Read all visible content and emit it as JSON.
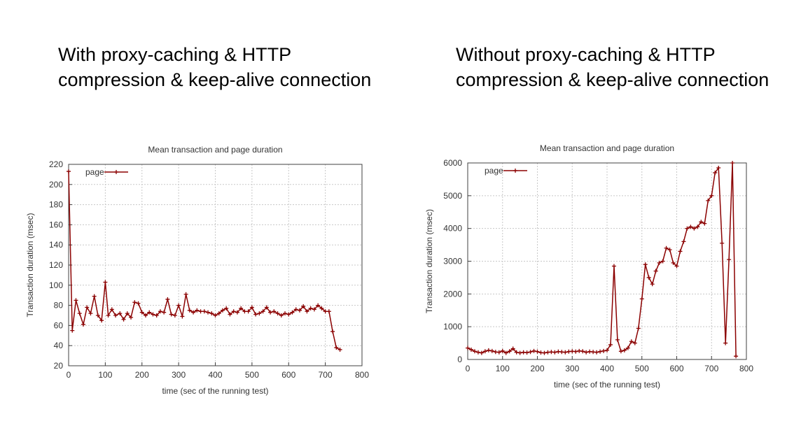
{
  "headings": {
    "left": [
      "With proxy-caching & HTTP",
      "compression & keep-alive connection"
    ],
    "right": [
      "Without proxy-caching & HTTP",
      "compression & keep-alive connection"
    ]
  },
  "colors": {
    "series": "#8b0000",
    "grid": "#c8c8c8",
    "axis": "#404040"
  },
  "chart_data": [
    {
      "type": "line",
      "title": "Mean transaction and page duration",
      "xlabel": "time (sec of the running test)",
      "ylabel": "Transaction duration (msec)",
      "xlim": [
        0,
        800
      ],
      "ylim": [
        20,
        220
      ],
      "xticks": [
        0,
        100,
        200,
        300,
        400,
        500,
        600,
        700,
        800
      ],
      "yticks": [
        20,
        40,
        60,
        80,
        100,
        120,
        140,
        160,
        180,
        200,
        220
      ],
      "grid": true,
      "legend_position": "top-left",
      "series": [
        {
          "name": "page",
          "marker": "plus",
          "x": [
            0,
            10,
            20,
            30,
            40,
            50,
            60,
            70,
            80,
            90,
            100,
            108,
            118,
            128,
            140,
            150,
            160,
            170,
            180,
            190,
            200,
            210,
            220,
            230,
            240,
            250,
            260,
            270,
            280,
            290,
            300,
            310,
            320,
            330,
            340,
            350,
            360,
            370,
            380,
            390,
            400,
            410,
            420,
            430,
            440,
            450,
            460,
            470,
            480,
            490,
            500,
            510,
            520,
            530,
            540,
            550,
            560,
            570,
            580,
            590,
            600,
            610,
            620,
            630,
            640,
            650,
            660,
            670,
            680,
            690,
            700,
            710,
            720,
            730,
            740
          ],
          "y": [
            213,
            55,
            85,
            72,
            61,
            78,
            72,
            89,
            70,
            65,
            103,
            70,
            76,
            70,
            72,
            66,
            72,
            68,
            83,
            82,
            73,
            70,
            73,
            71,
            70,
            74,
            73,
            86,
            71,
            70,
            80,
            69,
            91,
            75,
            73,
            75,
            74,
            74,
            73,
            72,
            70,
            72,
            75,
            77,
            71,
            74,
            73,
            77,
            74,
            74,
            78,
            71,
            72,
            74,
            78,
            73,
            74,
            72,
            70,
            72,
            71,
            73,
            76,
            75,
            79,
            74,
            77,
            76,
            80,
            77,
            74,
            74,
            54,
            38,
            36
          ]
        }
      ]
    },
    {
      "type": "line",
      "title": "Mean transaction and page duration",
      "xlabel": "time (sec of the running test)",
      "ylabel": "Transaction duration (msec)",
      "xlim": [
        0,
        800
      ],
      "ylim": [
        0,
        6000
      ],
      "xticks": [
        0,
        100,
        200,
        300,
        400,
        500,
        600,
        700,
        800
      ],
      "yticks": [
        0,
        1000,
        2000,
        3000,
        4000,
        5000,
        6000
      ],
      "grid": true,
      "legend_position": "top-left",
      "series": [
        {
          "name": "page",
          "marker": "plus",
          "x": [
            0,
            10,
            20,
            30,
            40,
            50,
            60,
            70,
            80,
            90,
            100,
            110,
            120,
            130,
            140,
            150,
            160,
            170,
            180,
            190,
            200,
            210,
            220,
            230,
            240,
            250,
            260,
            270,
            280,
            290,
            300,
            310,
            320,
            330,
            340,
            350,
            360,
            370,
            380,
            390,
            400,
            410,
            420,
            430,
            440,
            450,
            460,
            470,
            480,
            490,
            500,
            510,
            520,
            530,
            540,
            550,
            560,
            570,
            580,
            590,
            600,
            610,
            620,
            630,
            640,
            650,
            660,
            670,
            680,
            690,
            700,
            710,
            720,
            730,
            740,
            750,
            760,
            770
          ],
          "y": [
            350,
            300,
            250,
            220,
            200,
            250,
            280,
            260,
            230,
            220,
            260,
            200,
            250,
            330,
            220,
            200,
            220,
            210,
            230,
            260,
            240,
            210,
            200,
            220,
            230,
            220,
            240,
            230,
            220,
            240,
            250,
            240,
            260,
            250,
            220,
            240,
            230,
            220,
            240,
            260,
            280,
            450,
            2850,
            600,
            250,
            280,
            350,
            550,
            500,
            950,
            1850,
            2900,
            2500,
            2300,
            2700,
            2950,
            3000,
            3400,
            3350,
            2950,
            2850,
            3300,
            3600,
            4000,
            4050,
            4000,
            4050,
            4200,
            4150,
            4850,
            5000,
            5700,
            5850,
            3550,
            500,
            3050,
            6000,
            100
          ]
        }
      ]
    }
  ]
}
